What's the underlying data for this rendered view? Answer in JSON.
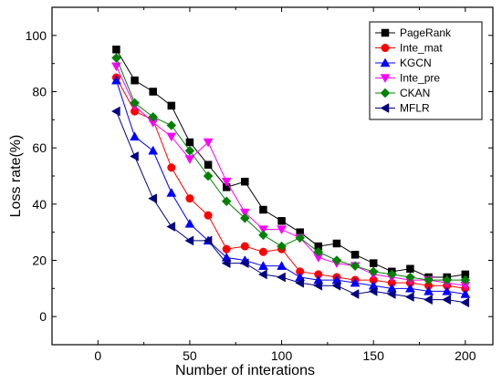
{
  "chart_data": {
    "type": "line",
    "title": "",
    "xlabel": "Number of interations",
    "ylabel": "Loss rate(%)",
    "xlim": [
      -25,
      215
    ],
    "ylim": [
      -10,
      110
    ],
    "xticks": [
      0,
      50,
      100,
      150,
      200
    ],
    "yticks": [
      0,
      20,
      40,
      60,
      80,
      100
    ],
    "grid": false,
    "legend": "top-right",
    "x": [
      10,
      20,
      30,
      40,
      50,
      60,
      70,
      80,
      90,
      100,
      110,
      120,
      130,
      140,
      150,
      160,
      170,
      180,
      190,
      200
    ],
    "series": [
      {
        "name": "PageRank",
        "color": "#000000",
        "marker": "square",
        "values": [
          95,
          84,
          80,
          75,
          62,
          54,
          46,
          48,
          38,
          34,
          30,
          25,
          26,
          22,
          19,
          16,
          17,
          14,
          14,
          15
        ]
      },
      {
        "name": "Inte_mat",
        "color": "#ff0000",
        "marker": "circle",
        "values": [
          85,
          73,
          70,
          53,
          42,
          36,
          24,
          25,
          23,
          24,
          16,
          15,
          14,
          13,
          13,
          12,
          12,
          11,
          11,
          10
        ]
      },
      {
        "name": "KGCN",
        "color": "#0000ff",
        "marker": "triangle-up",
        "values": [
          84,
          64,
          59,
          44,
          33,
          27,
          21,
          20,
          18,
          18,
          14,
          13,
          13,
          12,
          11,
          10,
          10,
          9,
          9,
          8
        ]
      },
      {
        "name": "Inte_pre",
        "color": "#ff00ff",
        "marker": "triangle-down",
        "values": [
          89,
          75,
          69,
          64,
          56,
          62,
          48,
          37,
          31,
          31,
          28,
          21,
          19,
          18,
          15,
          14,
          13,
          13,
          12,
          11
        ]
      },
      {
        "name": "CKAN",
        "color": "#008000",
        "marker": "diamond",
        "values": [
          92,
          76,
          71,
          68,
          59,
          50,
          41,
          35,
          29,
          25,
          28,
          23,
          20,
          18,
          16,
          15,
          14,
          13,
          13,
          13
        ]
      },
      {
        "name": "MFLR",
        "color": "#000080",
        "marker": "triangle-left",
        "values": [
          73,
          57,
          42,
          32,
          27,
          27,
          19,
          19,
          15,
          14,
          12,
          11,
          11,
          8,
          9,
          8,
          7,
          6,
          6,
          5
        ]
      }
    ]
  }
}
